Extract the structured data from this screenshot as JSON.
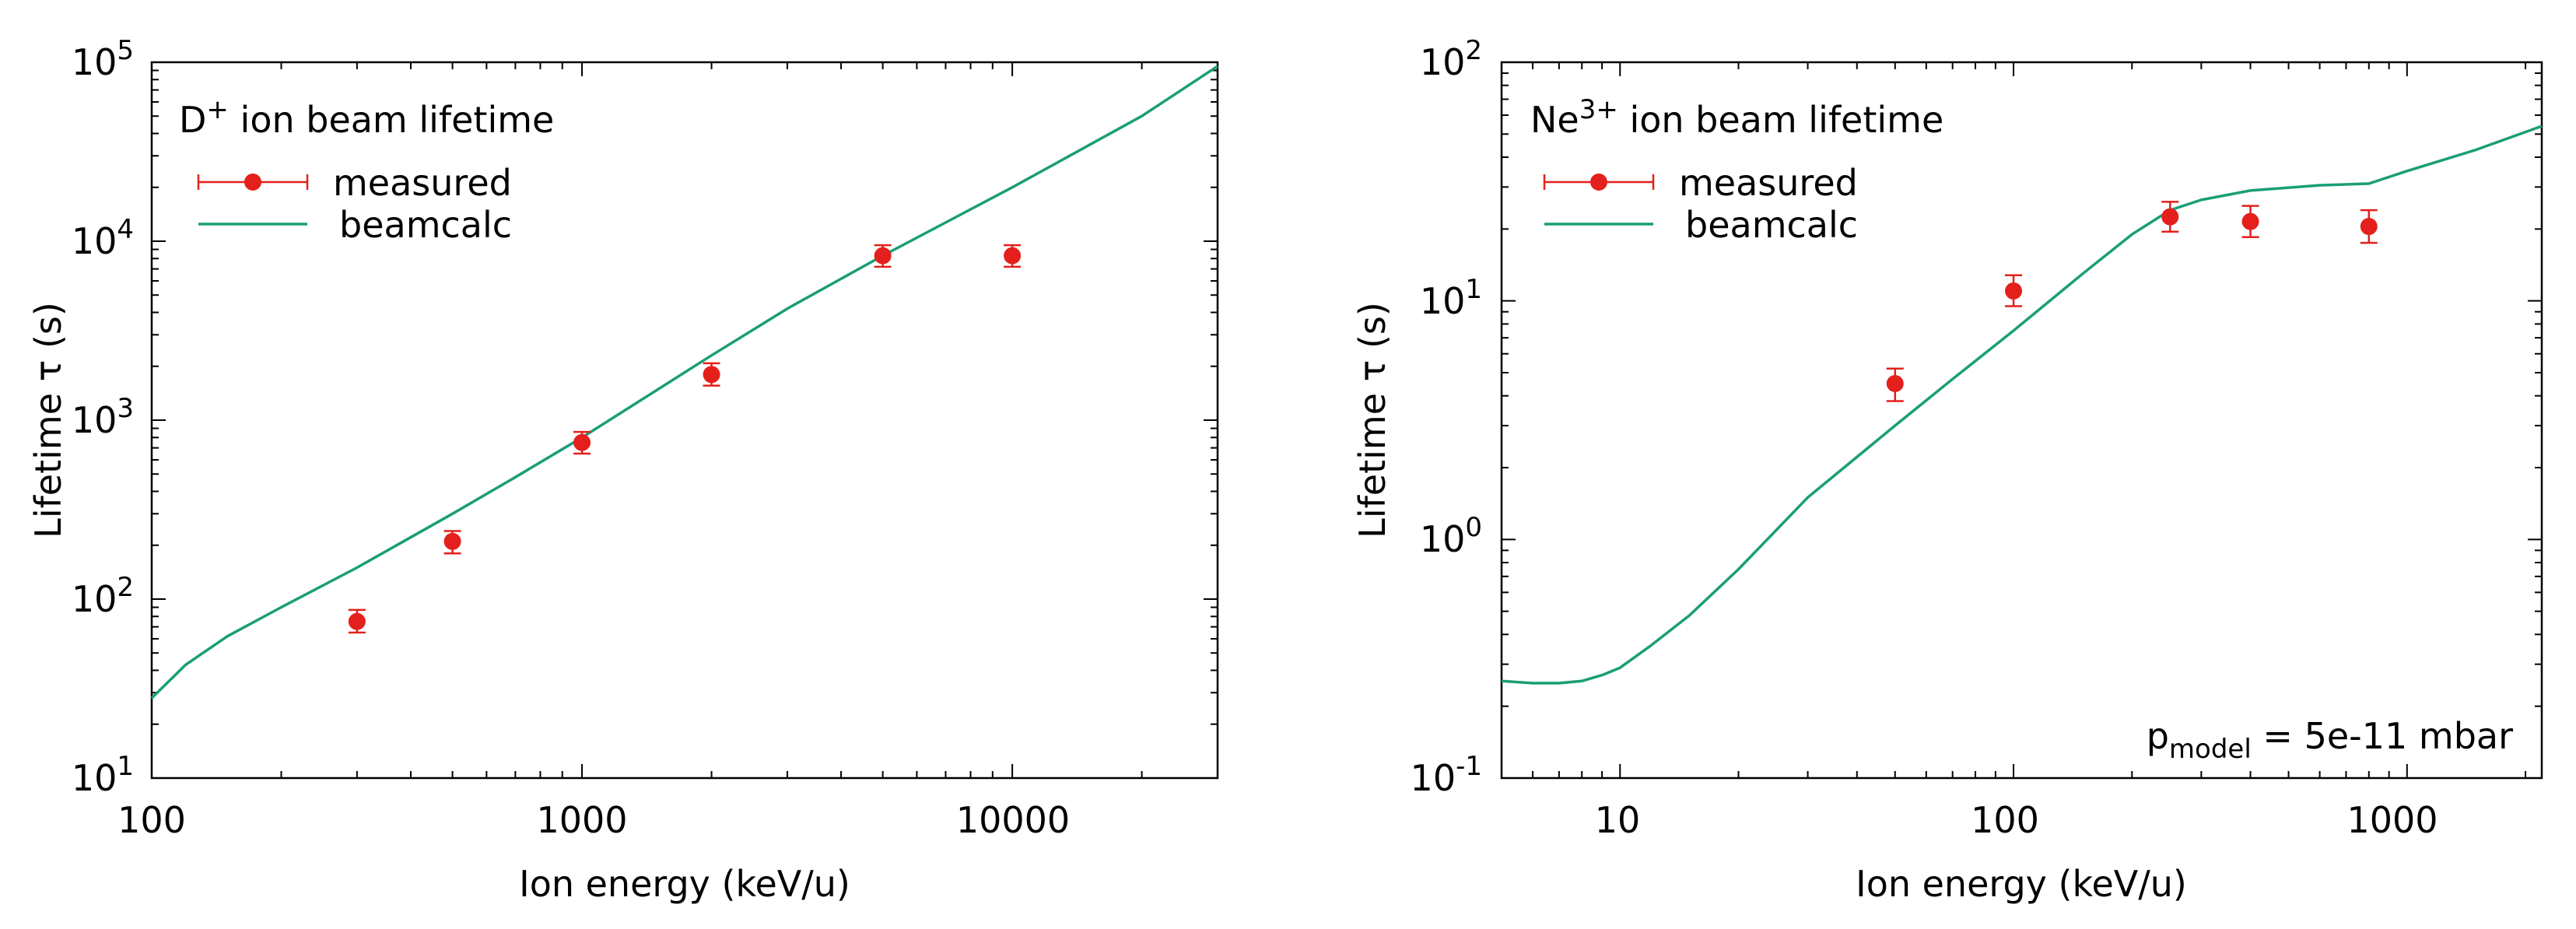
{
  "colors": {
    "measured": "#e3201b",
    "beamcalc": "#1a9e77",
    "axis": "#000000"
  },
  "chart_data": [
    {
      "type": "scatter",
      "title_main": "D",
      "title_sup": "+",
      "title_rest": " ion beam lifetime",
      "xlabel": "Ion energy (keV/u)",
      "ylabel": "Lifetime τ (s)",
      "xscale": "log",
      "yscale": "log",
      "xlim": [
        100,
        30000
      ],
      "ylim": [
        10,
        100000
      ],
      "x_tick_labels": [
        {
          "value": 100,
          "label": "100"
        },
        {
          "value": 1000,
          "label": "1000"
        },
        {
          "value": 10000,
          "label": "10000"
        }
      ],
      "y_tick_labels": [
        {
          "value": 10,
          "base": "10",
          "exp": "1"
        },
        {
          "value": 100,
          "base": "10",
          "exp": "2"
        },
        {
          "value": 1000,
          "base": "10",
          "exp": "3"
        },
        {
          "value": 10000,
          "base": "10",
          "exp": "4"
        },
        {
          "value": 100000,
          "base": "10",
          "exp": "5"
        }
      ],
      "legend": {
        "position": "top-left",
        "measured_label": "measured",
        "beamcalc_label": "beamcalc"
      },
      "series": [
        {
          "name": "measured",
          "kind": "points-with-errorbars",
          "points": [
            {
              "x": 300,
              "y": 75,
              "ylo": 65,
              "yhi": 87
            },
            {
              "x": 500,
              "y": 210,
              "ylo": 180,
              "yhi": 240
            },
            {
              "x": 1000,
              "y": 750,
              "ylo": 650,
              "yhi": 860
            },
            {
              "x": 2000,
              "y": 1800,
              "ylo": 1560,
              "yhi": 2080
            },
            {
              "x": 5000,
              "y": 8300,
              "ylo": 7200,
              "yhi": 9500
            },
            {
              "x": 10000,
              "y": 8300,
              "ylo": 7200,
              "yhi": 9500
            }
          ]
        },
        {
          "name": "beamcalc",
          "kind": "line",
          "points": [
            {
              "x": 100,
              "y": 28
            },
            {
              "x": 120,
              "y": 43
            },
            {
              "x": 150,
              "y": 62
            },
            {
              "x": 200,
              "y": 90
            },
            {
              "x": 300,
              "y": 150
            },
            {
              "x": 500,
              "y": 300
            },
            {
              "x": 700,
              "y": 480
            },
            {
              "x": 1000,
              "y": 800
            },
            {
              "x": 2000,
              "y": 2300
            },
            {
              "x": 3000,
              "y": 4200
            },
            {
              "x": 5000,
              "y": 8300
            },
            {
              "x": 10000,
              "y": 20000
            },
            {
              "x": 20000,
              "y": 50000
            },
            {
              "x": 30000,
              "y": 95000
            }
          ]
        }
      ]
    },
    {
      "type": "scatter",
      "title_main": "Ne",
      "title_sup": "3+",
      "title_rest": " ion beam lifetime",
      "xlabel": "Ion energy (keV/u)",
      "ylabel": "Lifetime τ (s)",
      "xscale": "log",
      "yscale": "log",
      "xlim": [
        5,
        2200
      ],
      "ylim": [
        0.1,
        100
      ],
      "annotation": {
        "main": "p",
        "sub": "model",
        "rest": " = 5e-11 mbar"
      },
      "x_tick_labels": [
        {
          "value": 10,
          "label": "10"
        },
        {
          "value": 100,
          "label": "100"
        },
        {
          "value": 1000,
          "label": "1000"
        }
      ],
      "y_tick_labels": [
        {
          "value": 0.1,
          "base": "10",
          "exp": "-1"
        },
        {
          "value": 1,
          "base": "10",
          "exp": "0"
        },
        {
          "value": 10,
          "base": "10",
          "exp": "1"
        },
        {
          "value": 100,
          "base": "10",
          "exp": "2"
        }
      ],
      "legend": {
        "position": "top-left",
        "measured_label": "measured",
        "beamcalc_label": "beamcalc"
      },
      "series": [
        {
          "name": "measured",
          "kind": "points-with-errorbars",
          "points": [
            {
              "x": 50,
              "y": 4.5,
              "ylo": 3.8,
              "yhi": 5.2
            },
            {
              "x": 100,
              "y": 11,
              "ylo": 9.5,
              "yhi": 12.8
            },
            {
              "x": 250,
              "y": 22.5,
              "ylo": 19.5,
              "yhi": 26
            },
            {
              "x": 400,
              "y": 21.5,
              "ylo": 18.5,
              "yhi": 25
            },
            {
              "x": 800,
              "y": 20.5,
              "ylo": 17.5,
              "yhi": 24
            }
          ]
        },
        {
          "name": "beamcalc",
          "kind": "line",
          "points": [
            {
              "x": 5,
              "y": 0.255
            },
            {
              "x": 6,
              "y": 0.25
            },
            {
              "x": 7,
              "y": 0.25
            },
            {
              "x": 8,
              "y": 0.255
            },
            {
              "x": 9,
              "y": 0.27
            },
            {
              "x": 10,
              "y": 0.29
            },
            {
              "x": 12,
              "y": 0.36
            },
            {
              "x": 15,
              "y": 0.48
            },
            {
              "x": 20,
              "y": 0.75
            },
            {
              "x": 30,
              "y": 1.5
            },
            {
              "x": 50,
              "y": 3.0
            },
            {
              "x": 70,
              "y": 4.7
            },
            {
              "x": 100,
              "y": 7.5
            },
            {
              "x": 150,
              "y": 13
            },
            {
              "x": 200,
              "y": 19
            },
            {
              "x": 250,
              "y": 24
            },
            {
              "x": 300,
              "y": 26.5
            },
            {
              "x": 400,
              "y": 29
            },
            {
              "x": 600,
              "y": 30.5
            },
            {
              "x": 800,
              "y": 31
            },
            {
              "x": 1000,
              "y": 35
            },
            {
              "x": 1500,
              "y": 43
            },
            {
              "x": 2200,
              "y": 54
            }
          ]
        }
      ]
    }
  ]
}
